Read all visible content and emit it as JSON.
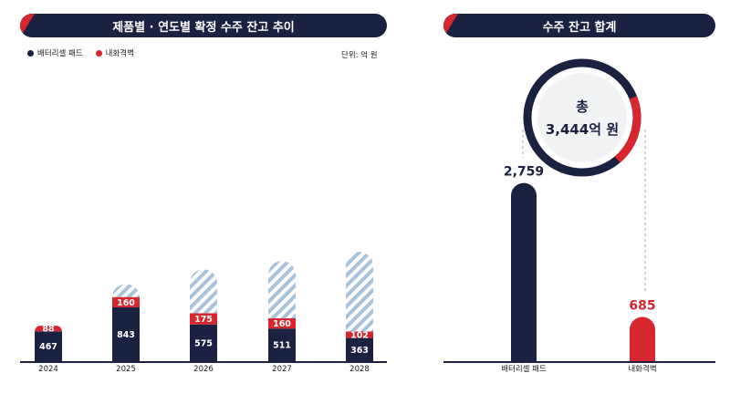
{
  "left_panel": {
    "title": "제품별 · 연도별 확정 수주 잔고 추이",
    "unit": "단위: 억 원"
  },
  "right_panel": {
    "title": "수주 잔고 합계",
    "total_prefix": "총",
    "total_value": "3,444억 원"
  },
  "colors": {
    "navy": "#1b2140",
    "red": "#d7262e",
    "hatch": "#a9c2dc"
  },
  "chart_data": [
    {
      "type": "bar",
      "stacked": true,
      "categories": [
        "2024",
        "2025",
        "2026",
        "2027",
        "2028"
      ],
      "series": [
        {
          "name": "배터리셀 패드",
          "color": "#1b2140",
          "values": [
            467,
            843,
            575,
            511,
            363
          ],
          "labels": [
            "467",
            "843",
            "575",
            "511",
            "363"
          ]
        },
        {
          "name": "내화격벽",
          "color": "#d7262e",
          "values": [
            88,
            160,
            175,
            160,
            102
          ],
          "labels": [
            "88",
            "160",
            "175",
            "160",
            "102"
          ]
        }
      ],
      "projected_totals": [
        555,
        1205,
        1440,
        1570,
        1710
      ],
      "legend_position": "top-left",
      "grid": false
    },
    {
      "type": "bar",
      "categories": [
        "배터리셀 패드",
        "내화격벽"
      ],
      "values": [
        2759,
        685
      ],
      "labels": [
        "2,759",
        "685"
      ],
      "colors": [
        "#1b2140",
        "#d7262e"
      ],
      "grid": false
    }
  ]
}
